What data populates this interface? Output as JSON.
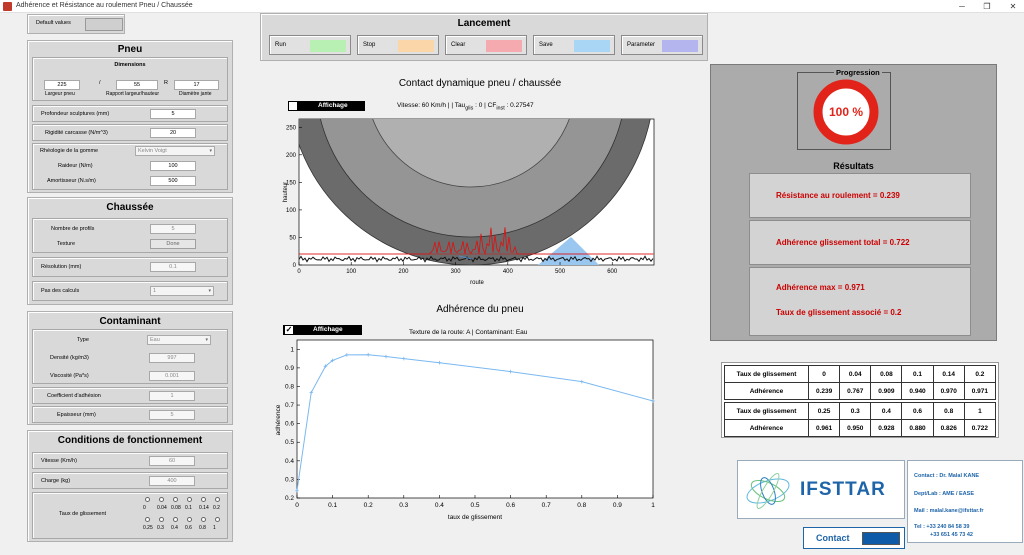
{
  "window": {
    "title": "Adhérence et Résistance au roulement Pneu / Chaussée",
    "minimize": "─",
    "restore": "❐",
    "close": "✕"
  },
  "defaults": {
    "label": "Default values"
  },
  "pneu": {
    "title": "Pneu",
    "dimensions_title": "Dimensions",
    "width": "225",
    "sep1": "/",
    "ratio": "55",
    "sep2": "R",
    "rim": "17",
    "width_label": "Largeur pneu",
    "ratio_label": "Rapport largeur/hauteur",
    "rim_label": "Diamètre jante",
    "sculptures_label": "Profondeur sculptures (mm)",
    "sculptures": "5",
    "rigidite_label": "Rigidité carcasse (N/m^3)",
    "rigidite": "20",
    "rheologie_label": "Rhéologie de la gomme",
    "rheologie": "Kelvin Voigt",
    "raideur_label": "Raideur (N/m)",
    "raideur": "100",
    "amort_label": "Amortisseur (N.s/m)",
    "amort": "500"
  },
  "chaussee": {
    "title": "Chaussée",
    "profils_label": "Nombre de profils",
    "profils": "5",
    "texture_label": "Texture",
    "texture_btn": "Done",
    "resolution_label": "Résolution (mm)",
    "resolution": "0.1",
    "pas_label": "Pas des calculs",
    "pas": "1"
  },
  "contaminant": {
    "title": "Contaminant",
    "type_label": "Type",
    "type": "Eau",
    "densite_label": "Densité (kg/m3)",
    "densite": "997",
    "viscosite_label": "Viscosité (Pa*s)",
    "viscosite": "0.001",
    "coef_label": "Coefficient d'adhésion",
    "coef": "1",
    "epaisseur_label": "Epaisseur (mm)",
    "epaisseur": "5"
  },
  "conditions": {
    "title": "Conditions de fonctionnement",
    "vitesse_label": "Vitesse (Km/h)",
    "vitesse": "60",
    "charge_label": "Charge (kg)",
    "charge": "400",
    "taux_label": "Taux de glissement",
    "radios_row1": [
      "0",
      "0.04",
      "0.08",
      "0.1",
      "0.14",
      "0.2"
    ],
    "radios_row2": [
      "0.25",
      "0.3",
      "0.4",
      "0.6",
      "0.8",
      "1"
    ]
  },
  "lancement": {
    "title": "Lancement",
    "run": "Run",
    "stop": "Stop",
    "clear": "Clear",
    "save": "Save",
    "parameter": "Parameter",
    "colors": {
      "run": "#b7f0b2",
      "stop": "#fbd6a8",
      "clear": "#f5aab0",
      "save": "#aad6f5",
      "parameter": "#b4b4ee"
    }
  },
  "contact_chart": {
    "title": "Contact dynamique pneu / chaussée",
    "affichage": "Affichage",
    "info": "Vitesse: 60  Km/h |  | Tau",
    "info_sub": "glis",
    "info2": "  : 0 | CF",
    "info_sub2": "inst",
    "info3": "  : 0.27547",
    "xlabel": "route",
    "ylabel": "hauteur",
    "xticks": [
      "0",
      "100",
      "200",
      "300",
      "400",
      "500",
      "600"
    ],
    "yticks": [
      "0",
      "50",
      "100",
      "150",
      "200",
      "250"
    ]
  },
  "adh_chart": {
    "title": "Adhérence du pneu",
    "affichage": "Affichage",
    "subtitle": "Texture de la route: A | Contaminant: Eau",
    "xlabel": "taux de glissement",
    "ylabel": "adhérence",
    "xticks": [
      "0",
      "0.1",
      "0.2",
      "0.3",
      "0.4",
      "0.5",
      "0.6",
      "0.7",
      "0.8",
      "0.9",
      "1"
    ],
    "yticks": [
      "0.2",
      "0.3",
      "0.4",
      "0.5",
      "0.6",
      "0.7",
      "0.8",
      "0.9",
      "1"
    ]
  },
  "chart_data": {
    "type": "line",
    "title": "Adhérence du pneu",
    "xlabel": "taux de glissement",
    "ylabel": "adhérence",
    "xlim": [
      0,
      1
    ],
    "ylim": [
      0.2,
      1.05
    ],
    "grid": true,
    "x": [
      0,
      0.04,
      0.08,
      0.1,
      0.14,
      0.2,
      0.25,
      0.3,
      0.4,
      0.6,
      0.8,
      1
    ],
    "series": [
      {
        "values": [
          0.239,
          0.767,
          0.909,
          0.94,
          0.97,
          0.971,
          0.961,
          0.95,
          0.928,
          0.88,
          0.826,
          0.722
        ],
        "color": "#7ab8f0"
      }
    ]
  },
  "progression": {
    "title": "Progression",
    "value": "100 %"
  },
  "resultats": {
    "title": "Résultats",
    "rr": "Résistance au roulement  =  0.239",
    "ag": "Adhérence glissement total  =  0.722",
    "amax": "Adhérence max  =  0.971",
    "taux": "Taux de glissement associé  =  0.2"
  },
  "table": {
    "row_label_taux": "Taux de glissement",
    "row_label_adh": "Adhérence",
    "taux1": [
      "0",
      "0.04",
      "0.08",
      "0.1",
      "0.14",
      "0.2"
    ],
    "adh1": [
      "0.239",
      "0.767",
      "0.909",
      "0.940",
      "0.970",
      "0.971"
    ],
    "taux2": [
      "0.25",
      "0.3",
      "0.4",
      "0.6",
      "0.8",
      "1"
    ],
    "adh2": [
      "0.961",
      "0.950",
      "0.928",
      "0.880",
      "0.826",
      "0.722"
    ]
  },
  "logo": {
    "text": "IFSTTAR"
  },
  "contact_info": {
    "line1": "Contact : Dr. Malal KANE",
    "line2": "Dept/Lab : AME / EASE",
    "line3": "Mail : malal.kane@ifsttar.fr",
    "line4": "Tel : +33 240 84 58 39",
    "line5": "+33 651 45 73 42"
  },
  "contact_btn": {
    "label": "Contact",
    "color": "#0f5aa8"
  }
}
